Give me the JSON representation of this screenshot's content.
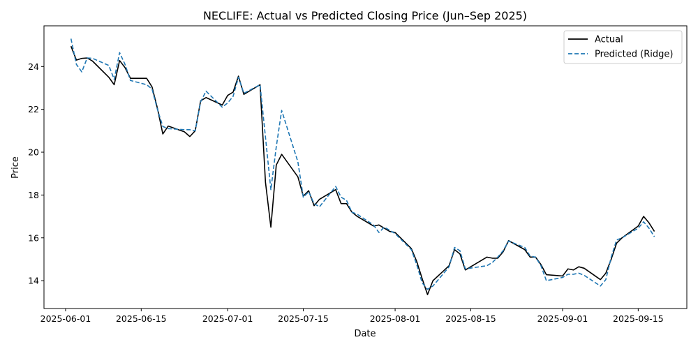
{
  "chart_data": {
    "type": "line",
    "title": "NECLIFE: Actual vs Predicted Closing Price (Jun–Sep 2025)",
    "xlabel": "Date",
    "ylabel": "Price",
    "xlim": [
      "2025-05-28",
      "2025-09-24"
    ],
    "ylim": [
      12.7,
      25.9
    ],
    "x_ticks": [
      "2025-06-01",
      "2025-06-15",
      "2025-07-01",
      "2025-07-15",
      "2025-08-01",
      "2025-08-15",
      "2025-09-01",
      "2025-09-15"
    ],
    "y_ticks": [
      14,
      16,
      18,
      20,
      22,
      24
    ],
    "grid": false,
    "legend_position": "top-right",
    "series": [
      {
        "name": "Actual",
        "color": "#000000",
        "style": "solid",
        "points": [
          [
            "2025-06-02",
            24.95
          ],
          [
            "2025-06-03",
            24.3
          ],
          [
            "2025-06-04",
            24.38
          ],
          [
            "2025-06-05",
            24.4
          ],
          [
            "2025-06-06",
            24.25
          ],
          [
            "2025-06-09",
            23.5
          ],
          [
            "2025-06-10",
            23.15
          ],
          [
            "2025-06-11",
            24.28
          ],
          [
            "2025-06-12",
            23.95
          ],
          [
            "2025-06-13",
            23.45
          ],
          [
            "2025-06-16",
            23.45
          ],
          [
            "2025-06-17",
            23.05
          ],
          [
            "2025-06-18",
            22.05
          ],
          [
            "2025-06-19",
            20.85
          ],
          [
            "2025-06-20",
            21.22
          ],
          [
            "2025-06-23",
            20.95
          ],
          [
            "2025-06-24",
            20.73
          ],
          [
            "2025-06-25",
            21.0
          ],
          [
            "2025-06-26",
            22.4
          ],
          [
            "2025-06-27",
            22.55
          ],
          [
            "2025-06-30",
            22.2
          ],
          [
            "2025-07-01",
            22.65
          ],
          [
            "2025-07-02",
            22.8
          ],
          [
            "2025-07-03",
            23.55
          ],
          [
            "2025-07-04",
            22.7
          ],
          [
            "2025-07-07",
            23.15
          ],
          [
            "2025-07-08",
            18.6
          ],
          [
            "2025-07-09",
            16.5
          ],
          [
            "2025-07-10",
            19.4
          ],
          [
            "2025-07-11",
            19.9
          ],
          [
            "2025-07-14",
            18.85
          ],
          [
            "2025-07-15",
            17.95
          ],
          [
            "2025-07-16",
            18.2
          ],
          [
            "2025-07-17",
            17.5
          ],
          [
            "2025-07-18",
            17.8
          ],
          [
            "2025-07-21",
            18.25
          ],
          [
            "2025-07-22",
            17.6
          ],
          [
            "2025-07-23",
            17.6
          ],
          [
            "2025-07-24",
            17.2
          ],
          [
            "2025-07-25",
            17.0
          ],
          [
            "2025-07-28",
            16.55
          ],
          [
            "2025-07-29",
            16.6
          ],
          [
            "2025-07-30",
            16.45
          ],
          [
            "2025-07-31",
            16.3
          ],
          [
            "2025-08-01",
            16.25
          ],
          [
            "2025-08-04",
            15.5
          ],
          [
            "2025-08-05",
            14.9
          ],
          [
            "2025-08-06",
            14.1
          ],
          [
            "2025-08-07",
            13.35
          ],
          [
            "2025-08-08",
            14.0
          ],
          [
            "2025-08-11",
            14.7
          ],
          [
            "2025-08-12",
            15.45
          ],
          [
            "2025-08-13",
            15.25
          ],
          [
            "2025-08-14",
            14.5
          ],
          [
            "2025-08-18",
            15.1
          ],
          [
            "2025-08-19",
            15.05
          ],
          [
            "2025-08-20",
            15.05
          ],
          [
            "2025-08-21",
            15.35
          ],
          [
            "2025-08-22",
            15.87
          ],
          [
            "2025-08-25",
            15.45
          ],
          [
            "2025-08-26",
            15.1
          ],
          [
            "2025-08-27",
            15.1
          ],
          [
            "2025-08-28",
            14.75
          ],
          [
            "2025-08-29",
            14.28
          ],
          [
            "2025-09-01",
            14.22
          ],
          [
            "2025-09-02",
            14.55
          ],
          [
            "2025-09-03",
            14.5
          ],
          [
            "2025-09-04",
            14.65
          ],
          [
            "2025-09-05",
            14.58
          ],
          [
            "2025-09-08",
            14.05
          ],
          [
            "2025-09-09",
            14.35
          ],
          [
            "2025-09-10",
            15.0
          ],
          [
            "2025-09-11",
            15.75
          ],
          [
            "2025-09-12",
            16.0
          ],
          [
            "2025-09-15",
            16.55
          ],
          [
            "2025-09-16",
            17.0
          ],
          [
            "2025-09-17",
            16.7
          ],
          [
            "2025-09-18",
            16.3
          ]
        ]
      },
      {
        "name": "Predicted (Ridge)",
        "color": "#1f77b4",
        "style": "dashed",
        "points": [
          [
            "2025-06-02",
            25.3
          ],
          [
            "2025-06-03",
            24.1
          ],
          [
            "2025-06-04",
            23.75
          ],
          [
            "2025-06-05",
            24.4
          ],
          [
            "2025-06-06",
            24.38
          ],
          [
            "2025-06-09",
            24.05
          ],
          [
            "2025-06-10",
            23.4
          ],
          [
            "2025-06-11",
            24.65
          ],
          [
            "2025-06-12",
            24.1
          ],
          [
            "2025-06-13",
            23.35
          ],
          [
            "2025-06-16",
            23.15
          ],
          [
            "2025-06-17",
            22.95
          ],
          [
            "2025-06-18",
            22.0
          ],
          [
            "2025-06-19",
            21.2
          ],
          [
            "2025-06-20",
            21.1
          ],
          [
            "2025-06-23",
            21.05
          ],
          [
            "2025-06-24",
            21.05
          ],
          [
            "2025-06-25",
            21.0
          ],
          [
            "2025-06-26",
            22.35
          ],
          [
            "2025-06-27",
            22.85
          ],
          [
            "2025-06-30",
            22.1
          ],
          [
            "2025-07-01",
            22.3
          ],
          [
            "2025-07-02",
            22.6
          ],
          [
            "2025-07-03",
            23.5
          ],
          [
            "2025-07-04",
            22.75
          ],
          [
            "2025-07-07",
            23.15
          ],
          [
            "2025-07-08",
            20.7
          ],
          [
            "2025-07-09",
            18.25
          ],
          [
            "2025-07-10",
            20.25
          ],
          [
            "2025-07-11",
            21.95
          ],
          [
            "2025-07-14",
            19.55
          ],
          [
            "2025-07-15",
            17.9
          ],
          [
            "2025-07-16",
            18.15
          ],
          [
            "2025-07-17",
            17.6
          ],
          [
            "2025-07-18",
            17.45
          ],
          [
            "2025-07-21",
            18.4
          ],
          [
            "2025-07-22",
            17.9
          ],
          [
            "2025-07-23",
            17.75
          ],
          [
            "2025-07-24",
            17.2
          ],
          [
            "2025-07-25",
            17.1
          ],
          [
            "2025-07-28",
            16.6
          ],
          [
            "2025-07-29",
            16.25
          ],
          [
            "2025-07-30",
            16.5
          ],
          [
            "2025-07-31",
            16.35
          ],
          [
            "2025-08-01",
            16.2
          ],
          [
            "2025-08-04",
            15.45
          ],
          [
            "2025-08-05",
            14.75
          ],
          [
            "2025-08-06",
            13.9
          ],
          [
            "2025-08-07",
            13.6
          ],
          [
            "2025-08-08",
            13.75
          ],
          [
            "2025-08-11",
            14.65
          ],
          [
            "2025-08-12",
            15.55
          ],
          [
            "2025-08-13",
            15.4
          ],
          [
            "2025-08-14",
            14.55
          ],
          [
            "2025-08-18",
            14.7
          ],
          [
            "2025-08-19",
            14.85
          ],
          [
            "2025-08-20",
            15.1
          ],
          [
            "2025-08-21",
            15.4
          ],
          [
            "2025-08-22",
            15.85
          ],
          [
            "2025-08-25",
            15.55
          ],
          [
            "2025-08-26",
            15.15
          ],
          [
            "2025-08-27",
            15.1
          ],
          [
            "2025-08-28",
            14.7
          ],
          [
            "2025-08-29",
            14.0
          ],
          [
            "2025-09-01",
            14.15
          ],
          [
            "2025-09-02",
            14.3
          ],
          [
            "2025-09-03",
            14.3
          ],
          [
            "2025-09-04",
            14.35
          ],
          [
            "2025-09-05",
            14.25
          ],
          [
            "2025-09-08",
            13.75
          ],
          [
            "2025-09-09",
            14.05
          ],
          [
            "2025-09-10",
            15.1
          ],
          [
            "2025-09-11",
            15.9
          ],
          [
            "2025-09-12",
            16.0
          ],
          [
            "2025-09-15",
            16.45
          ],
          [
            "2025-09-16",
            16.75
          ],
          [
            "2025-09-17",
            16.45
          ],
          [
            "2025-09-18",
            16.05
          ]
        ]
      }
    ]
  }
}
